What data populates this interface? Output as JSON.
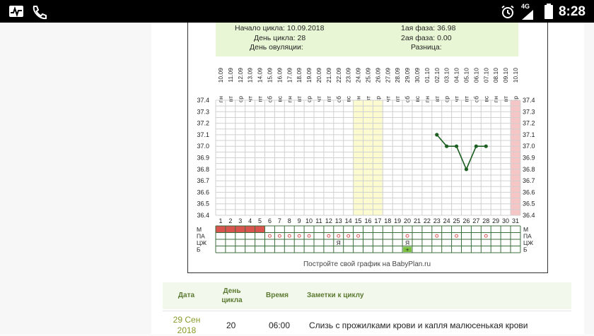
{
  "status_bar": {
    "time": "8:28",
    "network": "4G",
    "icons": [
      "activity-icon",
      "call-icon",
      "alarm-icon",
      "signal-icon",
      "battery-icon"
    ]
  },
  "cycle_info": {
    "start_label": "Начало цикла:",
    "start_value": "10.09.2018",
    "day_label": "День цикла:",
    "day_value": "28",
    "ovulation_label": "День овуляции:",
    "ovulation_value": "",
    "phase1_label": "1ая фаза:",
    "phase1_value": "36.98",
    "phase2_label": "2ая фаза:",
    "phase2_value": "0.00",
    "diff_label": "Разница:",
    "diff_value": ""
  },
  "chart_data": {
    "type": "line",
    "x": [
      1,
      2,
      3,
      4,
      5,
      6,
      7,
      8,
      9,
      10,
      11,
      12,
      13,
      14,
      15,
      16,
      17,
      18,
      19,
      20,
      21,
      22,
      23,
      24,
      25,
      26,
      27,
      28,
      29,
      30,
      31
    ],
    "dates": [
      "10.09",
      "11.09",
      "12.09",
      "13.09",
      "14.09",
      "15.09",
      "16.09",
      "17.09",
      "18.09",
      "19.09",
      "20.09",
      "21.09",
      "22.09",
      "23.09",
      "24.09",
      "25.09",
      "26.09",
      "27.09",
      "28.09",
      "29.09",
      "30.09",
      "01.10",
      "02.10",
      "03.10",
      "04.10",
      "05.10",
      "06.10",
      "07.10",
      "08.10",
      "09.10",
      "10.10"
    ],
    "weekdays": [
      "пн",
      "вт",
      "ср",
      "чт",
      "пт",
      "сб",
      "вс",
      "пн",
      "вт",
      "ср",
      "чт",
      "пт",
      "сб",
      "вс",
      "пн",
      "вт",
      "ср",
      "чт",
      "пт",
      "сб",
      "вс",
      "пн",
      "вт",
      "ср",
      "чт",
      "пт",
      "сб",
      "вс",
      "пн",
      "вт",
      "ср"
    ],
    "y_ticks": [
      "37.4",
      "37.3",
      "37.2",
      "37.1",
      "37.0",
      "36.9",
      "36.8",
      "36.7",
      "36.6",
      "36.5",
      "36.4"
    ],
    "ylim": [
      36.4,
      37.4
    ],
    "series": [
      {
        "points": [
          [
            23,
            37.1
          ],
          [
            24,
            37.0
          ],
          [
            25,
            37.0
          ],
          [
            26,
            36.8
          ],
          [
            27,
            37.0
          ],
          [
            28,
            37.0
          ]
        ],
        "color": "#1b5e20"
      }
    ],
    "highlight_days_yellow": [
      15,
      16,
      17
    ],
    "highlight_days_pink": [
      31
    ],
    "grid": true
  },
  "bottom_rows": {
    "labels": [
      "М",
      "ПА",
      "ЦЖ",
      "Б"
    ],
    "menstruation_days": [
      1,
      2,
      3,
      4,
      5
    ],
    "pa_marks": [
      6,
      7,
      8,
      9,
      10,
      12,
      13,
      14,
      15,
      20,
      23,
      25,
      28
    ],
    "cj_marks": [
      {
        "day": 13,
        "text": "Я"
      },
      {
        "day": 20,
        "text": "Я"
      }
    ],
    "b_marks": [
      {
        "day": 20,
        "text": "+"
      }
    ],
    "menstruation_color": "#d9534f",
    "pa_color": "#d9534f",
    "b_color": "#7cc242"
  },
  "caption": "Постройте свой график на BabyPlan.ru",
  "notes": {
    "headers": {
      "date": "Дата",
      "day": "День цикла",
      "time": "Время",
      "note": "Заметки к циклу"
    },
    "rows": [
      {
        "date": "29 Сен 2018",
        "day": "20",
        "time": "06:00",
        "note": "Слизь с прожилками крови и капля малюсенькая крови"
      }
    ]
  }
}
